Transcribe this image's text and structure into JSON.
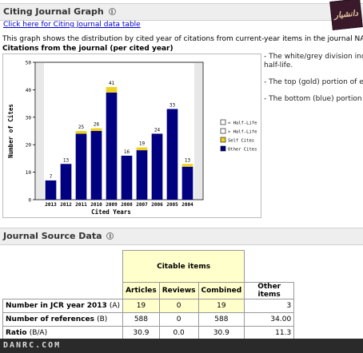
{
  "citing_section": {
    "title": "Citing Journal Graph",
    "info_icon": "info-icon",
    "link_text": "Click here for Citing Journal data table",
    "description": "This graph shows the distribution by cited year of citations from current-year items in the journal NAUTILUS.",
    "chart_heading": "Citations from the journal (per cited year)"
  },
  "logo_text": "دانشیار",
  "side_notes": [
    "- The white/grey division indic",
    "half-life.",
    "- The top (gold) portion of eac",
    "- The bottom (blue) portion of"
  ],
  "chart_data": {
    "type": "bar",
    "stacked": true,
    "categories": [
      "2013",
      "2012",
      "2011",
      "2010",
      "2009",
      "2008",
      "2007",
      "2006",
      "2005",
      "2004"
    ],
    "totals": [
      7,
      13,
      25,
      26,
      41,
      16,
      19,
      24,
      33,
      13
    ],
    "series": [
      {
        "name": "Other Cites",
        "color": "#000080",
        "values": [
          7,
          13,
          24,
          25,
          39,
          16,
          18,
          24,
          33,
          12
        ]
      },
      {
        "name": "Self Cites",
        "color": "#f0d020",
        "values": [
          0,
          0,
          1,
          1,
          2,
          0,
          1,
          0,
          0,
          1
        ]
      }
    ],
    "legend": [
      {
        "label": "< Half-Life",
        "color": "#ffffff"
      },
      {
        "label": "> Half-Life",
        "color": "#ffffff"
      },
      {
        "label": "Self Cites",
        "color": "#f0d020"
      },
      {
        "label": "Other Cites",
        "color": "#000080"
      }
    ],
    "xlabel": "Cited Years",
    "ylabel": "Number of Cites",
    "ylim": [
      0,
      50
    ],
    "yticks": [
      0,
      10,
      20,
      30,
      40,
      50
    ],
    "legend_position": "right",
    "grid": false
  },
  "source_section": {
    "title": "Journal Source Data",
    "info_icon": "info-icon",
    "group_header": "Citable items",
    "columns": [
      "Articles",
      "Reviews",
      "Combined",
      "Other items"
    ],
    "rows": [
      {
        "label": "Number in JCR year 2013",
        "symbol": "(A)",
        "values": [
          "19",
          "0",
          "19",
          "3"
        ]
      },
      {
        "label": "Number of references",
        "symbol": "(B)",
        "values": [
          "588",
          "0",
          "588",
          "34.00"
        ]
      },
      {
        "label": "Ratio",
        "symbol": "(B/A)",
        "values": [
          "30.9",
          "0.0",
          "30.9",
          "11.3"
        ]
      }
    ]
  },
  "footer": {
    "text": "DANRC.COM"
  }
}
